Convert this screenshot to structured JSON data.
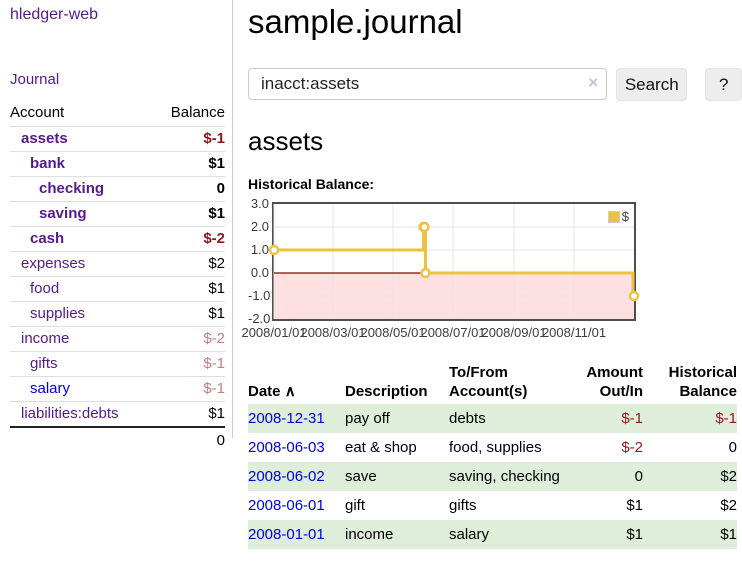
{
  "app": {
    "title": "hledger-web",
    "nav_journal": "Journal"
  },
  "sidebar": {
    "headers": {
      "account": "Account",
      "balance": "Balance"
    },
    "rows": [
      {
        "name": "assets",
        "balance": "$-1"
      },
      {
        "name": "bank",
        "balance": "$1"
      },
      {
        "name": "checking",
        "balance": "0"
      },
      {
        "name": "saving",
        "balance": "$1"
      },
      {
        "name": "cash",
        "balance": "$-2"
      },
      {
        "name": "expenses",
        "balance": "$2"
      },
      {
        "name": "food",
        "balance": "$1"
      },
      {
        "name": "supplies",
        "balance": "$1"
      },
      {
        "name": "income",
        "balance": "$-2"
      },
      {
        "name": "gifts",
        "balance": "$-1"
      },
      {
        "name": "salary",
        "balance": "$-1"
      },
      {
        "name": "liabilities:debts",
        "balance": "$1"
      }
    ],
    "total": "0"
  },
  "main": {
    "title": "sample.journal",
    "search": {
      "value": "inacct:assets",
      "clear_icon": "×",
      "button_label": "Search",
      "help_label": "?"
    },
    "account_heading": "assets",
    "chart_label": "Historical Balance:"
  },
  "chart_data": {
    "type": "line",
    "title": "Historical Balance",
    "step": true,
    "series": [
      {
        "name": "$",
        "color": "#edc240",
        "points": [
          [
            "2008-01-01",
            1
          ],
          [
            "2008-06-01",
            2
          ],
          [
            "2008-06-02",
            2
          ],
          [
            "2008-06-03",
            0
          ],
          [
            "2008-12-31",
            -1
          ]
        ]
      }
    ],
    "xlim": [
      "2008-01-01",
      "2008-12-31"
    ],
    "ylim": [
      -2,
      3
    ],
    "x_ticks": [
      "2008/01/01",
      "2008/03/01",
      "2008/05/01",
      "2008/07/01",
      "2008/09/01",
      "2008/11/01"
    ],
    "y_ticks": [
      "3.0",
      "2.0",
      "1.0",
      "0.0",
      "-1.0",
      "-2.0"
    ],
    "legend": {
      "label": "$",
      "position": "top-right"
    },
    "grid": {
      "on": true,
      "color": "#e6e6e6",
      "zero_line_color": "#8b0000",
      "negative_region_color": "rgba(255,0,0,0.12)",
      "border_color": "#4d4d4d"
    }
  },
  "register": {
    "headers": {
      "date": "Date",
      "sort_icon": "∧",
      "description": "Description",
      "accounts": "To/From Account(s)",
      "amount": "Amount Out/In",
      "balance": "Historical Balance"
    },
    "rows": [
      {
        "date": "2008-12-31",
        "description": "pay off",
        "accounts": "debts",
        "amount": "$-1",
        "balance": "$-1"
      },
      {
        "date": "2008-06-03",
        "description": "eat & shop",
        "accounts": "food, supplies",
        "amount": "$-2",
        "balance": "0"
      },
      {
        "date": "2008-06-02",
        "description": "save",
        "accounts": "saving, checking",
        "amount": "0",
        "balance": "$2"
      },
      {
        "date": "2008-06-01",
        "description": "gift",
        "accounts": "gifts",
        "amount": "$1",
        "balance": "$2"
      },
      {
        "date": "2008-01-01",
        "description": "income",
        "accounts": "salary",
        "amount": "$1",
        "balance": "$1"
      }
    ]
  },
  "colors": {
    "link_visited": "#551a8b",
    "link": "#0000e0",
    "negative": "#8e1a1a",
    "negative_dim": "#c08080",
    "stripe": "#dfeeda",
    "series": "#edc240"
  }
}
